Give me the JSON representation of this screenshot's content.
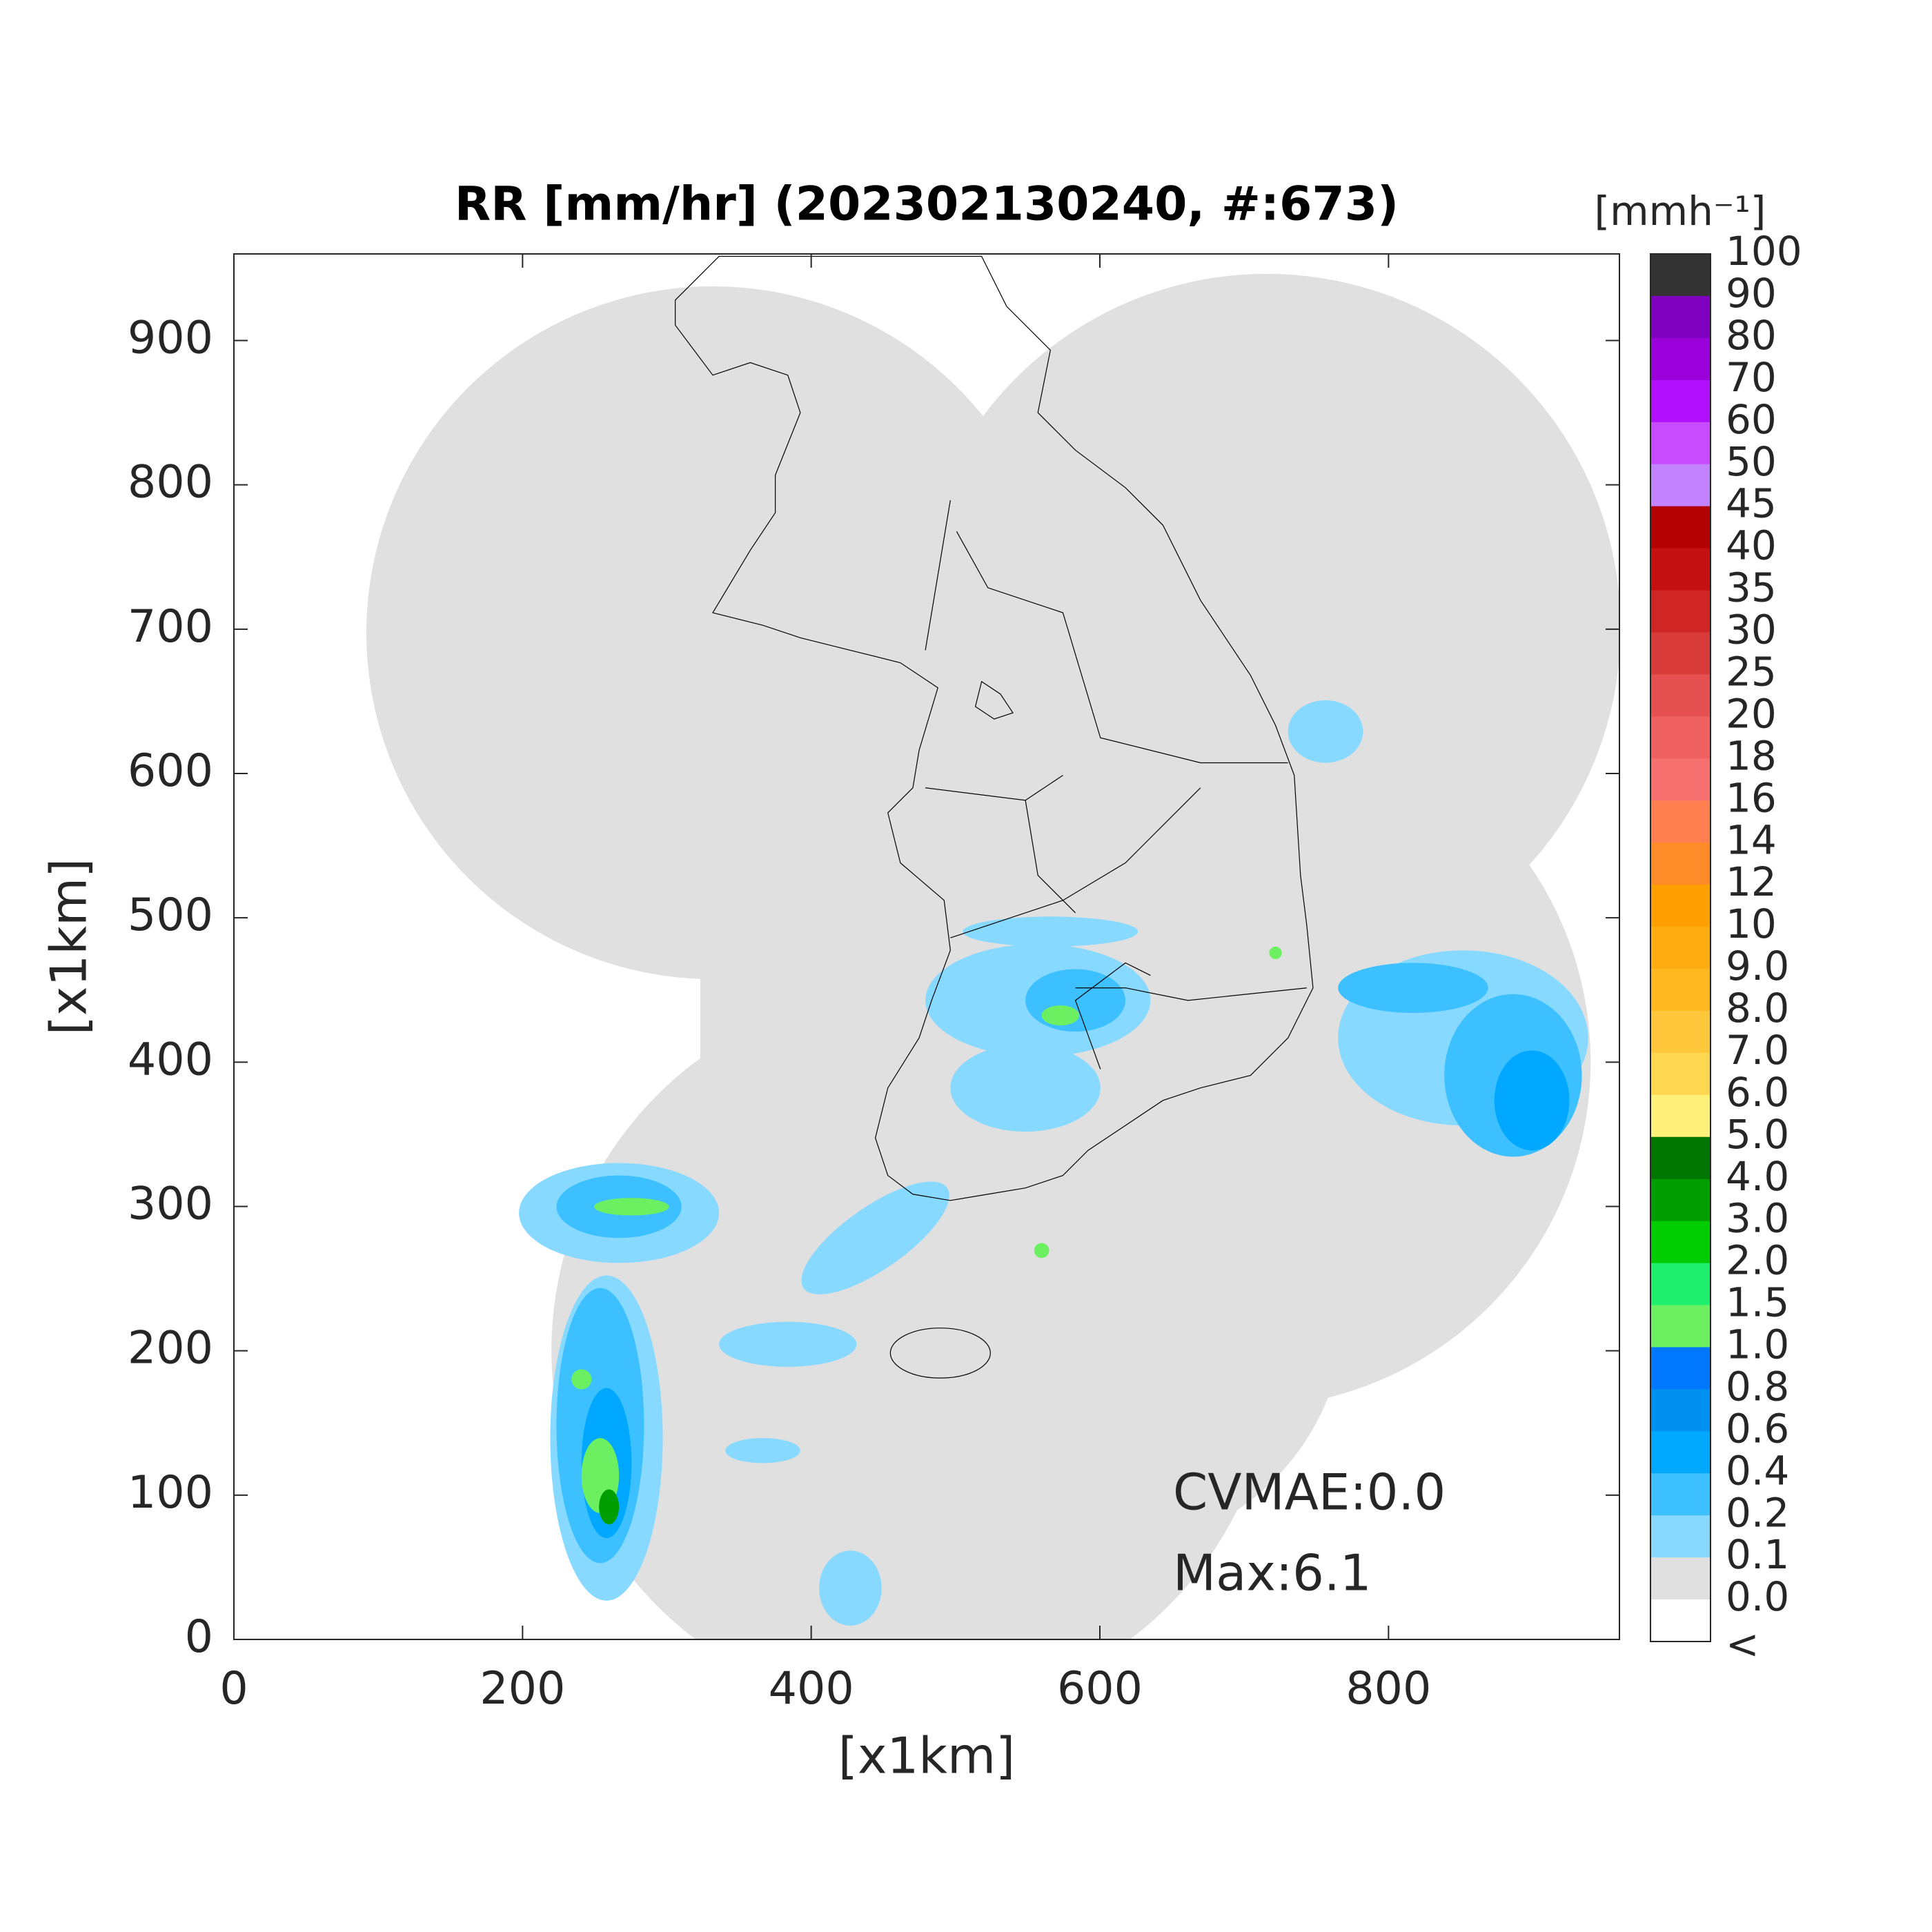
{
  "chart_data": {
    "type": "map",
    "title": "RR [mm/hr] (202302130240, #:673)",
    "x_label": "[x1km]",
    "y_label": "[x1km]",
    "xlim": [
      0,
      960
    ],
    "ylim": [
      0,
      960
    ],
    "xticks": [
      0,
      200,
      400,
      600,
      800
    ],
    "yticks": [
      0,
      100,
      200,
      300,
      400,
      500,
      600,
      700,
      800,
      900
    ],
    "annotations": [
      "CVMAE:0.0",
      "Max:6.1"
    ],
    "colorbar": {
      "label": "[mmh⁻¹]",
      "levels": [
        100,
        90,
        80,
        70,
        60,
        50,
        45,
        40,
        35,
        30,
        25,
        20,
        18,
        16,
        14,
        12,
        10,
        {
          "value": 9,
          "label": "9.0"
        },
        {
          "value": 8,
          "label": "8.0"
        },
        {
          "value": 7,
          "label": "7.0"
        },
        {
          "value": 6,
          "label": "6.0"
        },
        {
          "value": 5,
          "label": "5.0"
        },
        {
          "value": 4,
          "label": "4.0"
        },
        {
          "value": 3,
          "label": "3.0"
        },
        {
          "value": 2,
          "label": "2.0"
        },
        1.5,
        {
          "value": 1,
          "label": "1.0"
        },
        0.8,
        0.6,
        0.4,
        0.2,
        0.1,
        {
          "value": 0,
          "label": "0.0"
        }
      ],
      "under_label": "<",
      "colors": [
        "#333333",
        "#7f00bf",
        "#9a00d9",
        "#b20fff",
        "#c84cff",
        "#c183ff",
        "#b30000",
        "#c41010",
        "#d02525",
        "#d93a3a",
        "#e55050",
        "#ef6060",
        "#f67070",
        "#ff7f50",
        "#ff8c28",
        "#ffa000",
        "#ffac12",
        "#ffb81f",
        "#ffc83c",
        "#ffd750",
        "#fff07a",
        "#007500",
        "#009e00",
        "#00cc00",
        "#1ef06e",
        "#6cf062",
        "#0077ff",
        "#0090f0",
        "#00a8ff",
        "#3cc0ff",
        "#87d9ff",
        "#e0e0e0",
        "#ffffff"
      ]
    }
  }
}
